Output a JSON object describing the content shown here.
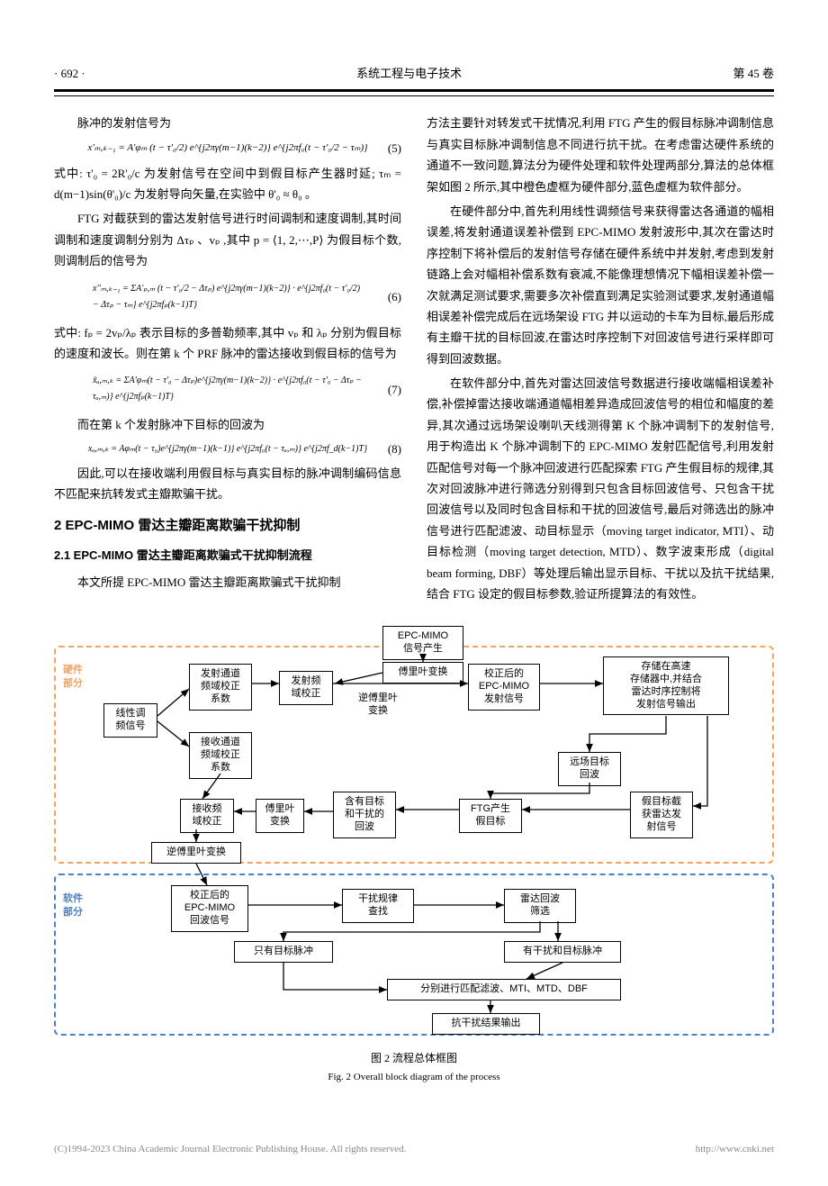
{
  "header": {
    "page_num": "· 692 ·",
    "journal": "系统工程与电子技术",
    "volume": "第 45 卷"
  },
  "left_col": {
    "p1": "脉冲的发射信号为",
    "eq5": "x'ₘ,ₖ₋₁ = A'φₘ (t − τ'₀/2) e^{j2πγ(m−1)(k−2)} e^{j2πf₀(t − τ'₀/2 − τₘ)}",
    "eq5_num": "(5)",
    "p2": "式中: τ'₀ = 2R'₀/c 为发射信号在空间中到假目标产生器时延; τₘ = d(m−1)sin(θ'₀)/c 为发射导向矢量,在实验中 θ'₀ ≈ θ₀ 。",
    "p3": "FTG 对截获到的雷达发射信号进行时间调制和速度调制,其时间调制和速度调制分别为 Δτₚ 、vₚ ,其中 p = ⟨1, 2,⋯,P⟩ 为假目标个数,则调制后的信号为",
    "eq6": "x''ₘ,ₖ₋₁ = ΣA'ₚ,ₘ (t − τ'₀/2 − Δτₚ) e^{j2πγ(m−1)(k−2)} · e^{j2πf₀(t − τ'₀/2) − Δτₚ − τₘ} e^{j2πfₚ(k−1)T}",
    "eq6_num": "(6)",
    "p4": "式中: fₚ = 2vₚ/λₚ 表示目标的多普勒频率,其中 vₚ 和 λₚ 分别为假目标的速度和波长。则在第 k 个 PRF 脉冲的雷达接收到假目标的信号为",
    "eq7": "x̃ᵤ,ₘ,ₖ = ΣA'φₘ(t − τ'₀ − Δτₚ)e^{j2πγ(m−1)(k−2)} · e^{j2πf₀(t − τ'₀ − Δτₚ − τᵤ,ₘ)} e^{j2πfₚ(k−1)T}",
    "eq7_num": "(7)",
    "p5": "而在第 k 个发射脉冲下目标的回波为",
    "eq8": "xᵤ,ₘ,ₖ = Aφₘ(t − τ₀)e^{j2πγ(m−1)(k−1)} e^{j2πf₀(t − τᵤ,ₘ)} e^{j2πf_d(k−1)T}",
    "eq8_num": "(8)",
    "p6": "因此,可以在接收端利用假目标与真实目标的脉冲调制编码信息不匹配来抗转发式主瓣欺骗干扰。",
    "sec2": "2  EPC-MIMO 雷达主瓣距离欺骗干扰抑制",
    "sec21": "2.1  EPC-MIMO 雷达主瓣距离欺骗式干扰抑制流程",
    "p7": "本文所提 EPC-MIMO 雷达主瓣距离欺骗式干扰抑制"
  },
  "right_col": {
    "p1": "方法主要针对转发式干扰情况,利用 FTG 产生的假目标脉冲调制信息与真实目标脉冲调制信息不同进行抗干扰。在考虑雷达硬件系统的通道不一致问题,算法分为硬件处理和软件处理两部分,算法的总体框架如图 2 所示,其中橙色虚框为硬件部分,蓝色虚框为软件部分。",
    "p2": "在硬件部分中,首先利用线性调频信号来获得雷达各通道的幅相误差,将发射通道误差补偿到 EPC-MIMO 发射波形中,其次在雷达时序控制下将补偿后的发射信号存储在硬件系统中并发射,考虑到发射链路上会对幅相补偿系数有衰减,不能像理想情况下幅相误差补偿一次就满足测试要求,需要多次补偿直到满足实验测试要求,发射通道幅相误差补偿完成后在远场架设 FTG 并以运动的卡车为目标,最后形成有主瓣干扰的目标回波,在雷达时序控制下对回波信号进行采样即可得到回波数据。",
    "p3": "在软件部分中,首先对雷达回波信号数据进行接收端幅相误差补偿,补偿掉雷达接收端通道幅相差异造成回波信号的相位和幅度的差异,其次通过远场架设喇叭天线测得第 K 个脉冲调制下的发射信号,用于构造出 K 个脉冲调制下的 EPC-MIMO 发射匹配信号,利用发射匹配信号对每一个脉冲回波进行匹配探索 FTG 产生假目标的规律,其次对回波脉冲进行筛选分别得到只包含目标回波信号、只包含干扰回波信号以及同时包含目标和干扰的回波信号,最后对筛选出的脉冲信号进行匹配滤波、动目标显示（moving target indicator, MTI）、动目标检测（moving target detection, MTD）、数字波束形成（digital beam forming, DBF）等处理后输出显示目标、干扰以及抗干扰结果,结合 FTG 设定的假目标参数,验证所提算法的有效性。"
  },
  "flowchart": {
    "hw_color": "#f5a25d",
    "sw_color": "#4a7fc9",
    "hw_label": "硬件\n部分",
    "sw_label": "软件\n部分",
    "nodes": {
      "n1": "EPC-MIMO\n信号产生",
      "n1b": "傅里叶变换",
      "n2": "线性调\n频信号",
      "n3": "发射通道\n频域校正\n系数",
      "n4": "发射频\n域校正",
      "n4b": "逆傅里叶\n变换",
      "n5": "校正后的\nEPC-MIMO\n发射信号",
      "n6": "存储在高速\n存储器中,并结合\n雷达时序控制将\n发射信号输出",
      "n7": "接收通道\n频域校正\n系数",
      "n8": "接收频\n域校正",
      "n8a": "傅里叶\n变换",
      "n9": "含有目标\n和干扰的\n回波",
      "n10": "FTG产生\n假目标",
      "n11": "远场目标\n回波",
      "n12": "假目标截\n获雷达发\n射信号",
      "n13": "逆傅里叶变换",
      "n14": "校正后的\nEPC-MIMO\n回波信号",
      "n15": "干扰规律\n查找",
      "n16": "雷达回波\n筛选",
      "n17": "只有目标脉冲",
      "n18": "有干扰和目标脉冲",
      "n19": "分别进行匹配滤波、MTI、MTD、DBF",
      "n20": "抗干扰结果输出"
    },
    "caption_cn": "图 2  流程总体框图",
    "caption_en": "Fig. 2  Overall block diagram of the process"
  },
  "footer": {
    "left": "(C)1994-2023 China Academic Journal Electronic Publishing House. All rights reserved.",
    "right": "http://www.cnki.net"
  }
}
